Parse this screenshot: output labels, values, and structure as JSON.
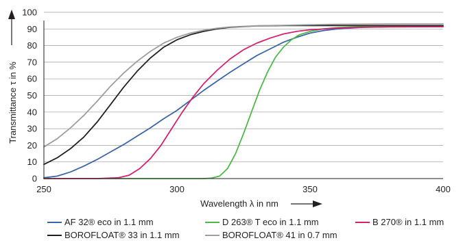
{
  "chart_data": {
    "type": "line",
    "xlabel": "Wavelength λ in nm",
    "ylabel": "Transmittance τ in %",
    "xlim": [
      250,
      400
    ],
    "ylim": [
      0,
      100
    ],
    "x_ticks": [
      250,
      300,
      350,
      400
    ],
    "y_ticks": [
      0,
      10,
      20,
      30,
      40,
      50,
      60,
      70,
      80,
      90,
      100
    ],
    "grid": "horizontal",
    "legend_position": "bottom",
    "series": [
      {
        "name": "AF 32® eco in 1.1 mm",
        "color": "#3a64a8",
        "x": [
          250,
          255,
          260,
          265,
          270,
          275,
          280,
          285,
          290,
          295,
          300,
          305,
          310,
          315,
          320,
          325,
          330,
          335,
          340,
          345,
          350,
          355,
          360,
          370,
          380,
          390,
          400
        ],
        "y": [
          0.5,
          1.5,
          4,
          7.5,
          11.5,
          16,
          20.5,
          25.5,
          30.5,
          36,
          41,
          47,
          53,
          58.5,
          64,
          69,
          74,
          78,
          82,
          85,
          87.5,
          89,
          90,
          91,
          91.3,
          91.5,
          91.5
        ]
      },
      {
        "name": "D 263® T eco in 1.1 mm",
        "color": "#4db848",
        "x": [
          250,
          300,
          310,
          313,
          316,
          319,
          322,
          325,
          328,
          331,
          334,
          337,
          340,
          343,
          346,
          350,
          355,
          360,
          370,
          380,
          390,
          400
        ],
        "y": [
          0,
          0,
          0,
          0.3,
          1.5,
          6,
          15,
          27,
          40,
          53,
          64,
          73,
          79,
          83.5,
          86.5,
          88.5,
          90,
          90.8,
          91.5,
          91.8,
          92,
          92
        ]
      },
      {
        "name": "B 270® in 1.1 mm",
        "color": "#d4206e",
        "x": [
          250,
          270,
          278,
          282,
          286,
          290,
          294,
          298,
          302,
          306,
          310,
          315,
          320,
          325,
          330,
          335,
          340,
          345,
          350,
          360,
          370,
          380,
          400
        ],
        "y": [
          0,
          0,
          0.5,
          2,
          6,
          12,
          20,
          30,
          40,
          49,
          57,
          65,
          72,
          77.5,
          81.5,
          84.5,
          87,
          88.5,
          89.5,
          90.5,
          91,
          91.2,
          91.3
        ]
      },
      {
        "name": "BOROFLOAT® 33 in 1.1 mm",
        "color": "#231f20",
        "x": [
          250,
          255,
          260,
          265,
          270,
          275,
          280,
          285,
          290,
          295,
          300,
          305,
          310,
          315,
          320,
          330,
          340,
          350,
          360,
          380,
          400
        ],
        "y": [
          8.5,
          12.5,
          18,
          25,
          34,
          44.5,
          55,
          64.5,
          72.5,
          79,
          83.5,
          86.5,
          88.5,
          90,
          91,
          91.8,
          92,
          92,
          92,
          92,
          92
        ]
      },
      {
        "name": "BOROFLOAT® 41 in 0.7 mm",
        "color": "#9d9d9c",
        "x": [
          250,
          255,
          260,
          265,
          270,
          275,
          280,
          285,
          290,
          295,
          300,
          305,
          310,
          315,
          320,
          330,
          340,
          350,
          360,
          380,
          400
        ],
        "y": [
          19,
          24,
          30.5,
          38,
          46.5,
          55.5,
          63.5,
          70.5,
          76.5,
          81.5,
          85,
          87.5,
          89.2,
          90.4,
          91.2,
          91.9,
          92.2,
          92.5,
          92.8,
          93,
          93
        ]
      }
    ]
  }
}
